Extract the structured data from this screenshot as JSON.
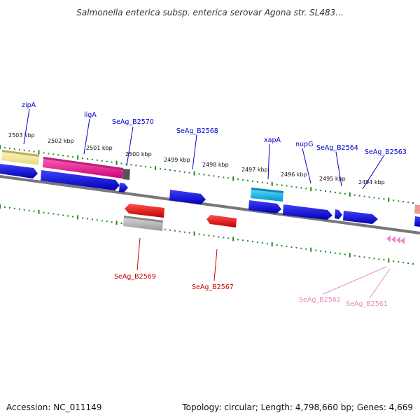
{
  "title": "Salmonella enterica subsp. enterica serovar Agona str. SL483...",
  "accession": "Accession: NC_011149",
  "topology": "Topology: circular; Length: 4,798,660 bp; Genes: 4,669",
  "scale_ticks": [
    "2503 kbp",
    "2502 kbp",
    "2501 kbp",
    "2500 kbp",
    "2499 kbp",
    "2498 kbp",
    "2497 kbp",
    "2496 kbp",
    "2495 kbp",
    "2494 kbp"
  ],
  "gene_labels": [
    {
      "text": "zipA",
      "strand": "forward",
      "color": "#0000cc"
    },
    {
      "text": "ligA",
      "strand": "forward",
      "color": "#0000cc"
    },
    {
      "text": "SeAg_B2570",
      "strand": "forward",
      "color": "#0000cc"
    },
    {
      "text": "SeAg_B2568",
      "strand": "forward",
      "color": "#0000cc"
    },
    {
      "text": "xapA",
      "strand": "forward",
      "color": "#0000cc"
    },
    {
      "text": "nupG",
      "strand": "forward",
      "color": "#0000cc"
    },
    {
      "text": "SeAg_B2564",
      "strand": "forward",
      "color": "#0000cc"
    },
    {
      "text": "SeAg_B2563",
      "strand": "forward",
      "color": "#0000cc"
    },
    {
      "text": "SeAg_B2569",
      "strand": "reverse",
      "color": "#cc0000"
    },
    {
      "text": "SeAg_B2567",
      "strand": "reverse",
      "color": "#cc0000"
    },
    {
      "text": "SeAg_B2562",
      "strand": "reverse",
      "color": "#ee88bb"
    },
    {
      "text": "SeAg_B2561",
      "strand": "reverse",
      "color": "#ee88bb"
    }
  ],
  "colors": {
    "forward_gene": "#0000dd",
    "reverse_gene": "#ee0000",
    "cds_khaki": "#eee090",
    "cds_magenta": "#ee1188",
    "cds_cyan": "#22bbee",
    "cds_gray": "#bbbbbb",
    "trna_pink": "#ee88cc",
    "backbone": "#777777",
    "ticks": "#228822"
  }
}
